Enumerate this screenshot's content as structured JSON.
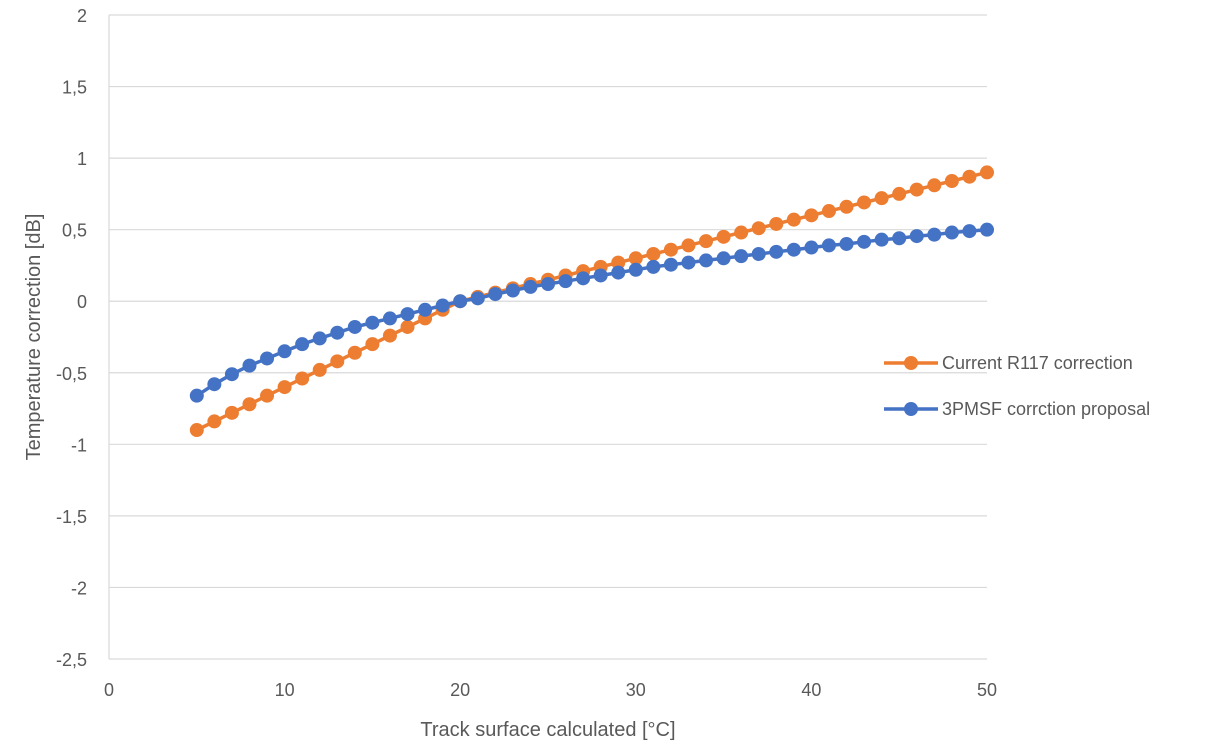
{
  "chart_data": {
    "type": "line",
    "title": "",
    "xlabel": "Track surface calculated [°C]",
    "ylabel": "Temperature correction [dB]",
    "xlim": [
      0,
      50
    ],
    "ylim": [
      -2.5,
      2
    ],
    "x_ticks": [
      0,
      10,
      20,
      30,
      40,
      50
    ],
    "x_tick_labels": [
      "0",
      "10",
      "20",
      "30",
      "40",
      "50"
    ],
    "y_ticks": [
      -2.5,
      -2,
      -1.5,
      -1,
      -0.5,
      0,
      0.5,
      1,
      1.5,
      2
    ],
    "y_tick_labels": [
      "-2,5",
      "-2",
      "-1,5",
      "-1",
      "-0,5",
      "0",
      "0,5",
      "1",
      "1,5",
      "2"
    ],
    "grid": "horizontal",
    "legend_position": "right",
    "x": [
      5,
      6,
      7,
      8,
      9,
      10,
      11,
      12,
      13,
      14,
      15,
      16,
      17,
      18,
      19,
      20,
      21,
      22,
      23,
      24,
      25,
      26,
      27,
      28,
      29,
      30,
      31,
      32,
      33,
      34,
      35,
      36,
      37,
      38,
      39,
      40,
      41,
      42,
      43,
      44,
      45,
      46,
      47,
      48,
      49,
      50
    ],
    "series": [
      {
        "name": "Current R117 correction",
        "color": "#ED7D31",
        "values": [
          -0.9,
          -0.84,
          -0.78,
          -0.72,
          -0.66,
          -0.6,
          -0.54,
          -0.48,
          -0.42,
          -0.36,
          -0.3,
          -0.24,
          -0.18,
          -0.12,
          -0.06,
          0,
          0.03,
          0.06,
          0.09,
          0.12,
          0.15,
          0.18,
          0.21,
          0.24,
          0.27,
          0.3,
          0.33,
          0.36,
          0.39,
          0.42,
          0.45,
          0.48,
          0.51,
          0.54,
          0.57,
          0.6,
          0.63,
          0.66,
          0.69,
          0.72,
          0.75,
          0.78,
          0.81,
          0.84,
          0.87,
          0.9
        ]
      },
      {
        "name": "3PMSF corrction proposal",
        "color": "#4472C4",
        "values": [
          -0.66,
          -0.58,
          -0.51,
          -0.45,
          -0.4,
          -0.35,
          -0.3,
          -0.26,
          -0.22,
          -0.18,
          -0.15,
          -0.12,
          -0.09,
          -0.06,
          -0.03,
          0,
          0.02,
          0.05,
          0.075,
          0.1,
          0.12,
          0.14,
          0.16,
          0.18,
          0.2,
          0.22,
          0.24,
          0.255,
          0.27,
          0.285,
          0.3,
          0.315,
          0.33,
          0.345,
          0.36,
          0.375,
          0.39,
          0.4,
          0.415,
          0.43,
          0.44,
          0.455,
          0.465,
          0.48,
          0.49,
          0.5
        ]
      }
    ]
  }
}
